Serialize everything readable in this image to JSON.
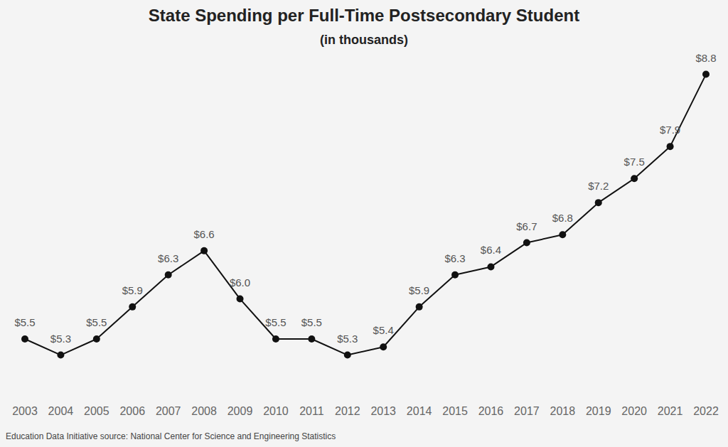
{
  "chart_data": {
    "type": "line",
    "title": "State Spending per Full-Time Postsecondary Student",
    "subtitle": "(in thousands)",
    "annotations": [
      "Education Data Initiative source: National Center for Science and Engineering Statistics"
    ],
    "categories": [
      "2003",
      "2004",
      "2005",
      "2006",
      "2007",
      "2008",
      "2009",
      "2010",
      "2011",
      "2012",
      "2013",
      "2014",
      "2015",
      "2016",
      "2017",
      "2018",
      "2019",
      "2020",
      "2021",
      "2022"
    ],
    "values": [
      5.5,
      5.3,
      5.5,
      5.9,
      6.3,
      6.6,
      6.0,
      5.5,
      5.5,
      5.3,
      5.4,
      5.9,
      6.3,
      6.4,
      6.7,
      6.8,
      7.2,
      7.5,
      7.9,
      8.8
    ],
    "value_labels": [
      "$5.5",
      "$5.3",
      "$5.5",
      "$5.9",
      "$6.3",
      "$6.6",
      "$6.0",
      "$5.5",
      "$5.5",
      "$5.3",
      "$5.4",
      "$5.9",
      "$6.3",
      "$6.4",
      "$6.7",
      "$6.8",
      "$7.2",
      "$7.5",
      "$7.9",
      "$8.8"
    ],
    "color": "#111111",
    "marker": "circle",
    "line_style": "solid",
    "data_labels": true,
    "tick_labels": "x",
    "grid": false,
    "ylim": [
      4.8,
      9.0
    ]
  }
}
